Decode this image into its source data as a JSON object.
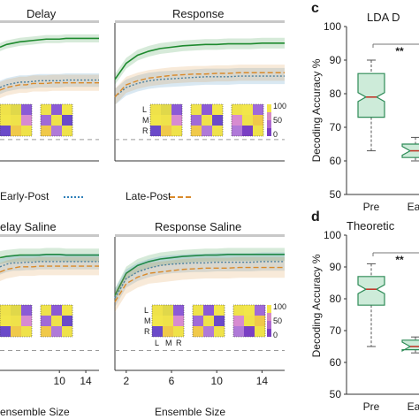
{
  "legend": [
    {
      "label": "Early-Post",
      "color": "#2f7fb8",
      "dash": "2,2"
    },
    {
      "label": "Late-Post",
      "color": "#d98a2b",
      "dash": "6,3"
    }
  ],
  "colors": {
    "pre": "#1e8a2e",
    "early": "#2f7fb8",
    "late": "#d98a2b",
    "box": "#2e8b57",
    "median": "#c0392b",
    "ref": "#9a9a9a"
  },
  "chart_data": [
    {
      "type": "line",
      "title": "Delay",
      "xlabel": "",
      "ylabel": "",
      "ylim": [
        0,
        100
      ],
      "xlim": [
        1,
        16
      ],
      "grid": false,
      "x": [
        1,
        2,
        3,
        4,
        5,
        6,
        7,
        8,
        9,
        10,
        11,
        12,
        13,
        14,
        15,
        16
      ],
      "chance": 33,
      "series": [
        {
          "name": "",
          "values": [
            82,
            84,
            85,
            86,
            86.5,
            87,
            87.5,
            88,
            88,
            88,
            88.5,
            88.5,
            88.5,
            88.5,
            88.5,
            88.5
          ],
          "band": 3
        },
        {
          "name": "Early-Post",
          "values": [
            52,
            54,
            55,
            56,
            56,
            56.5,
            57,
            57,
            57,
            57,
            57.5,
            57.5,
            57.5,
            57.5,
            57.5,
            57.5
          ],
          "band": 5
        },
        {
          "name": "Late-Post",
          "values": [
            50,
            52,
            53,
            54,
            54,
            55,
            55,
            55,
            55.5,
            55.5,
            55.5,
            55.5,
            55.5,
            55.5,
            55.5,
            55.5
          ],
          "band": 6
        }
      ],
      "heatmap_axis": {
        "labels": [],
        "colorbar_ticks": []
      }
    },
    {
      "type": "line",
      "title": "Response",
      "xlabel": "",
      "ylabel": "",
      "ylim": [
        0,
        100
      ],
      "xlim": [
        1,
        16
      ],
      "grid": false,
      "x": [
        1,
        2,
        3,
        4,
        5,
        6,
        7,
        8,
        9,
        10,
        11,
        12,
        13,
        14,
        15,
        16
      ],
      "chance": 33,
      "series": [
        {
          "name": "",
          "values": [
            58,
            70,
            76,
            79,
            81,
            82,
            83,
            83.5,
            84,
            84,
            84.5,
            84.5,
            84.5,
            85,
            85,
            85
          ],
          "band": 4
        },
        {
          "name": "Early-Post",
          "values": [
            45,
            52,
            55,
            57,
            58,
            58.5,
            59,
            59.5,
            60,
            60,
            60,
            60.5,
            60.5,
            60.5,
            60.5,
            60.5
          ],
          "band": 6
        },
        {
          "name": "Late-Post",
          "values": [
            45,
            54,
            57,
            59,
            60,
            61,
            61.5,
            62,
            62,
            62.5,
            62.5,
            63,
            63,
            63,
            63,
            63
          ],
          "band": 6
        }
      ],
      "heatmap_axis": {
        "labels": [
          "L",
          "M",
          "R"
        ],
        "colorbar_ticks": [
          "100",
          "50",
          "0"
        ]
      }
    },
    {
      "type": "line",
      "title": "elay Saline",
      "xlabel": "ensemble Size",
      "ylabel": "",
      "ylim": [
        0,
        100
      ],
      "xlim": [
        1,
        16
      ],
      "grid": false,
      "x": [
        1,
        2,
        3,
        4,
        5,
        6,
        7,
        8,
        9,
        10,
        11,
        12,
        13,
        14,
        15,
        16
      ],
      "x_ticks": [
        10,
        14
      ],
      "chance": 33,
      "series": [
        {
          "name": "",
          "values": [
            84,
            85,
            85.5,
            86,
            86,
            86,
            86,
            86.5,
            86.5,
            86.5,
            86,
            86,
            86,
            86,
            86,
            86
          ],
          "band": 5
        },
        {
          "name": "Early-Post",
          "values": [
            77,
            79,
            80,
            80,
            80.5,
            80.5,
            81,
            81,
            81,
            81,
            81,
            81,
            81,
            81,
            81,
            81
          ],
          "band": 6
        },
        {
          "name": "Late-Post",
          "values": [
            73,
            75,
            76,
            77,
            77,
            77,
            77.5,
            77.5,
            77.5,
            77.5,
            77.5,
            77.5,
            77.5,
            77.5,
            77.5,
            77.5
          ],
          "band": 7
        }
      ],
      "heatmap_axis": {
        "labels": [],
        "colorbar_ticks": []
      }
    },
    {
      "type": "line",
      "title": "Response Saline",
      "xlabel": "Ensemble Size",
      "ylabel": "",
      "ylim": [
        0,
        100
      ],
      "xlim": [
        1,
        16
      ],
      "grid": false,
      "x": [
        1,
        2,
        3,
        4,
        5,
        6,
        7,
        8,
        9,
        10,
        11,
        12,
        13,
        14,
        15,
        16
      ],
      "x_ticks": [
        2,
        6,
        10,
        14
      ],
      "chance": 33,
      "series": [
        {
          "name": "",
          "values": [
            55,
            72,
            78,
            81,
            83,
            84,
            85,
            85.5,
            86,
            86,
            86.5,
            86.5,
            86.5,
            86.5,
            86.5,
            86.5
          ],
          "band": 5
        },
        {
          "name": "Early-Post",
          "values": [
            53,
            68,
            73,
            76,
            78,
            79,
            79.5,
            80,
            80,
            80.5,
            80.5,
            80.5,
            80.5,
            81,
            81,
            81
          ],
          "band": 7
        },
        {
          "name": "Late-Post",
          "values": [
            50,
            64,
            69,
            72,
            73,
            74,
            75,
            75.5,
            76,
            76,
            76,
            76.5,
            76.5,
            76.5,
            76.5,
            76.5
          ],
          "band": 8
        }
      ],
      "heatmap_axis": {
        "labels": [
          "L",
          "M",
          "R"
        ],
        "x_labels": [
          "L",
          "M",
          "R"
        ],
        "colorbar_ticks": [
          "100",
          "50",
          "0"
        ]
      }
    },
    {
      "type": "box",
      "panel": "c",
      "title": "LDA D",
      "ylabel": "Decoding Accuracy %",
      "ylim": [
        50,
        100
      ],
      "y_ticks": [
        50,
        60,
        70,
        80,
        90,
        100
      ],
      "categories": [
        "Pre",
        "Ear"
      ],
      "boxes": [
        {
          "name": "Pre",
          "min": 63,
          "q1": 73,
          "median": 79,
          "q3": 86,
          "max": 90
        },
        {
          "name": "Ear",
          "min": 60,
          "q1": 61,
          "median": 63,
          "q3": 65,
          "max": 67
        }
      ],
      "significance": "**"
    },
    {
      "type": "box",
      "panel": "d",
      "title": "Theoretic",
      "ylabel": "Decoding Accuracy %",
      "ylim": [
        50,
        100
      ],
      "y_ticks": [
        50,
        60,
        70,
        80,
        90,
        100
      ],
      "categories": [
        "Pre",
        "Ear"
      ],
      "boxes": [
        {
          "name": "Pre",
          "min": 65,
          "q1": 78,
          "median": 83,
          "q3": 87,
          "max": 91
        },
        {
          "name": "Ear",
          "min": 63,
          "q1": 64,
          "median": 65,
          "q3": 67,
          "max": 68
        }
      ],
      "significance": "**"
    }
  ]
}
